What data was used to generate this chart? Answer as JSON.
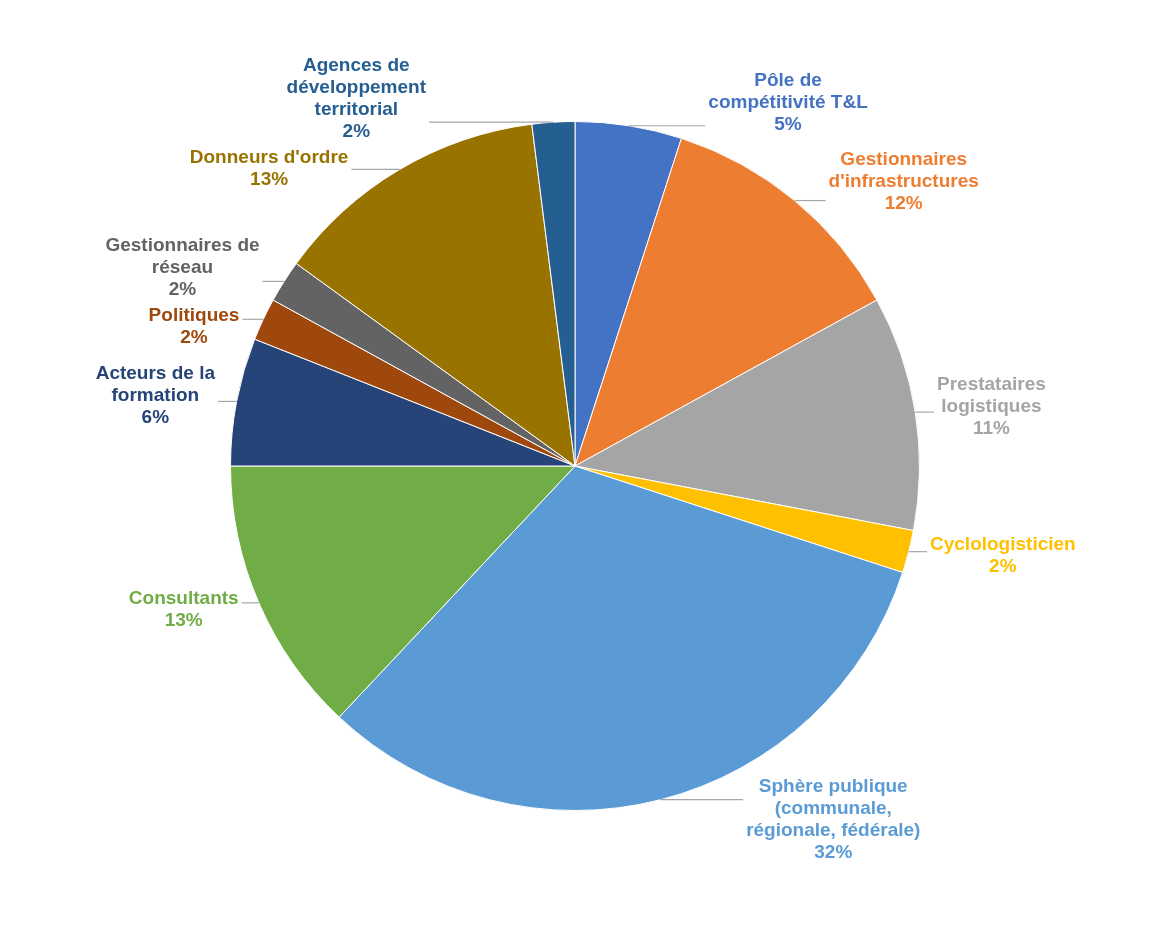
{
  "chart_data": {
    "type": "pie",
    "categories": [
      "Pôle de compétitivité T&L",
      "Gestionnaires d'infrastructures",
      "Prestataires logistiques",
      "Cyclologisticien",
      "Sphère publique (communale, régionale, fédérale)",
      "Consultants",
      "Acteurs de la formation",
      "Politiques",
      "Gestionnaires de réseau",
      "Donneurs d'ordre",
      "Agences de développement territorial"
    ],
    "values": [
      5,
      12,
      11,
      2,
      32,
      13,
      6,
      2,
      2,
      13,
      2
    ],
    "value_labels": [
      "5%",
      "12%",
      "11%",
      "2%",
      "32%",
      "13%",
      "6%",
      "2%",
      "2%",
      "13%",
      "2%"
    ],
    "colors": [
      "#4472c4",
      "#ed7d31",
      "#a5a5a5",
      "#ffc000",
      "#5b9bd5",
      "#70ad47",
      "#264478",
      "#9e480e",
      "#636363",
      "#997300",
      "#255e91"
    ],
    "legend": false
  }
}
